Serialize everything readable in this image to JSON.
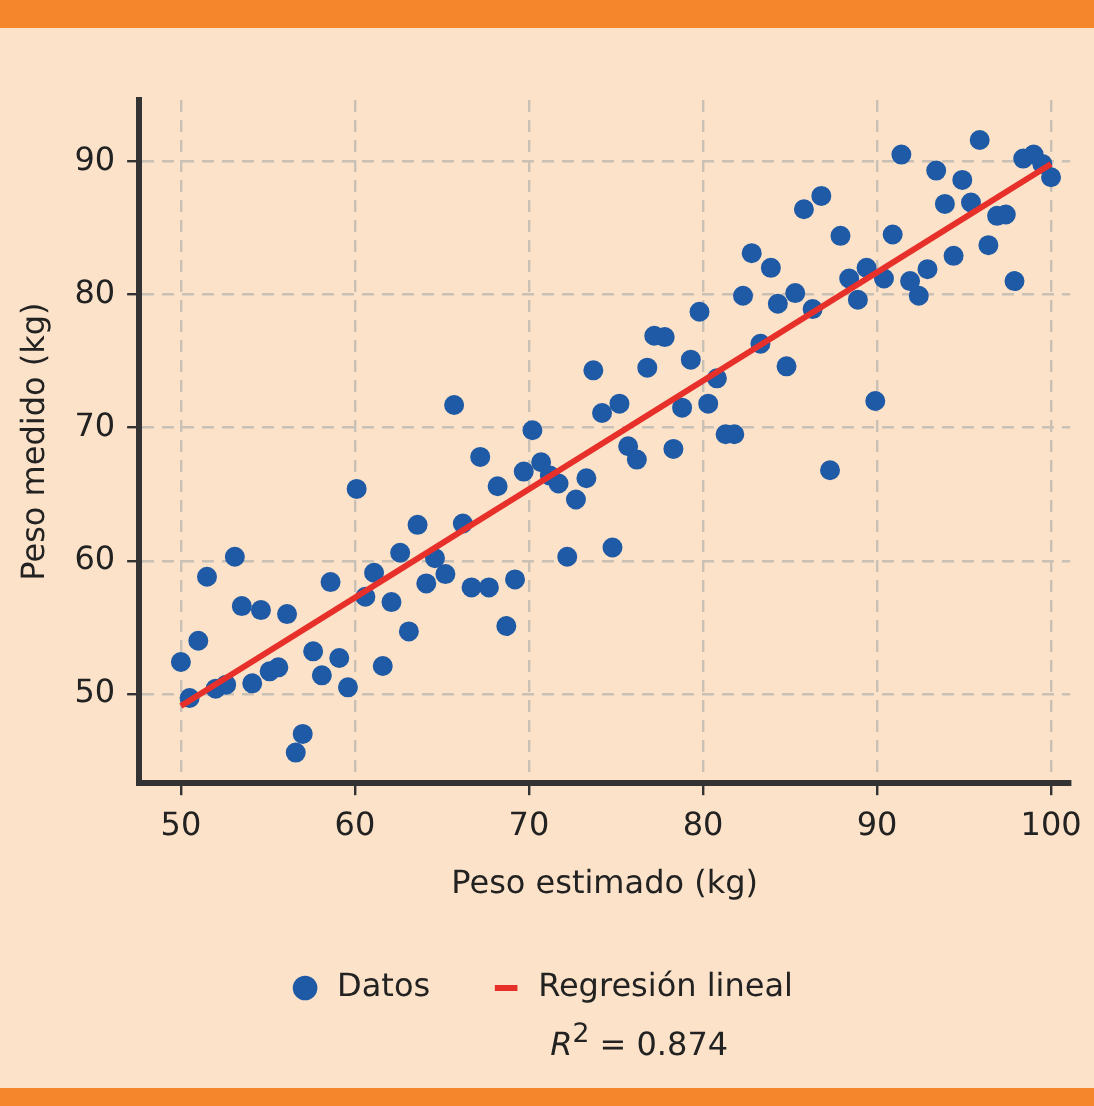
{
  "chart_data": {
    "type": "scatter",
    "xlabel": "Peso estimado (kg)",
    "ylabel": "Peso medido (kg)",
    "xlim": [
      47.6,
      101.1
    ],
    "xticks": [
      50,
      60,
      70,
      80,
      90,
      100
    ],
    "ylim": [
      43.3,
      94.6
    ],
    "yticks": [
      50,
      60,
      70,
      80,
      90
    ],
    "grid": true,
    "legend": "bottom",
    "annotations": [
      "R$^{2}$ = 0.874"
    ],
    "series": [
      {
        "name": "Datos",
        "type": "scatter",
        "marker": "circle",
        "color": "#1f5aa6",
        "x": [
          50.0,
          50.5,
          51.0,
          51.5,
          52.0,
          52.6,
          53.1,
          53.5,
          54.1,
          54.6,
          55.1,
          55.6,
          56.1,
          56.6,
          57.0,
          57.6,
          58.1,
          58.6,
          59.1,
          59.6,
          60.1,
          60.6,
          61.1,
          61.6,
          62.1,
          62.6,
          63.1,
          63.6,
          64.1,
          64.6,
          65.2,
          65.7,
          66.2,
          66.7,
          67.2,
          67.7,
          68.2,
          68.7,
          69.2,
          69.7,
          70.2,
          70.7,
          71.2,
          71.7,
          72.2,
          72.7,
          73.3,
          73.7,
          74.2,
          74.8,
          75.2,
          75.7,
          76.2,
          76.8,
          77.2,
          77.8,
          78.3,
          78.8,
          79.3,
          79.8,
          80.3,
          80.8,
          81.3,
          81.8,
          82.3,
          82.8,
          83.3,
          83.9,
          84.3,
          84.8,
          85.3,
          85.8,
          86.3,
          86.8,
          87.3,
          87.9,
          88.4,
          88.9,
          89.4,
          89.9,
          90.4,
          90.9,
          91.4,
          91.9,
          92.4,
          92.9,
          93.4,
          93.9,
          94.4,
          94.9,
          95.4,
          95.9,
          96.4,
          96.9,
          97.4,
          97.9,
          98.4,
          99.0,
          99.5,
          100.0
        ],
        "values": [
          52.4,
          49.7,
          54.0,
          58.8,
          50.4,
          50.7,
          60.3,
          56.6,
          50.8,
          56.3,
          51.7,
          52.0,
          56.0,
          45.6,
          47.0,
          53.2,
          51.4,
          58.4,
          52.7,
          50.5,
          65.4,
          57.3,
          59.1,
          52.1,
          56.9,
          60.6,
          54.7,
          62.7,
          58.3,
          60.2,
          59.0,
          71.7,
          62.8,
          58.0,
          67.8,
          58.0,
          65.6,
          55.1,
          58.6,
          66.7,
          69.8,
          67.4,
          66.4,
          65.8,
          60.3,
          64.6,
          66.2,
          74.3,
          71.1,
          61.0,
          71.8,
          68.6,
          67.6,
          74.5,
          76.9,
          76.8,
          68.4,
          71.5,
          75.1,
          78.7,
          71.8,
          73.7,
          69.5,
          69.5,
          79.9,
          83.1,
          76.3,
          82.0,
          79.3,
          74.6,
          80.1,
          86.4,
          78.9,
          87.4,
          66.8,
          84.4,
          81.2,
          79.6,
          82.0,
          72.0,
          81.2,
          84.5,
          90.5,
          81.0,
          79.9,
          81.9,
          89.3,
          86.8,
          82.9,
          88.6,
          86.9,
          91.6,
          83.7,
          85.9,
          86.0,
          81.0,
          90.2,
          90.5,
          89.8,
          88.8
        ]
      },
      {
        "name": "Regresión lineal",
        "type": "line",
        "marker": "none",
        "color": "#e8302a",
        "x": [
          50,
          100
        ],
        "values": [
          49.1,
          89.8
        ]
      }
    ]
  }
}
